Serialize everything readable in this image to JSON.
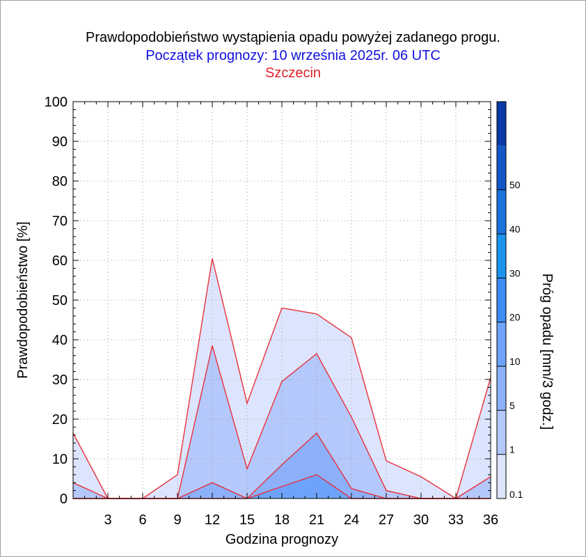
{
  "titles": {
    "main": "Prawdopodobieństwo wystąpienia opadu powyżej zadanego progu.",
    "start": "Początek prognozy: 10 września 2025r. 06 UTC",
    "location": "Szczecin"
  },
  "colors": {
    "start_text": "#1010e0",
    "location_text": "#e0202a",
    "series_line": "#e8303a"
  },
  "chart_data": {
    "type": "area",
    "xlabel": "Godzina prognozy",
    "ylabel": "Prawdopodobieństwo [%]",
    "xlim": [
      0,
      36
    ],
    "ylim": [
      0,
      100
    ],
    "x": [
      0,
      3,
      6,
      9,
      12,
      15,
      18,
      21,
      24,
      27,
      30,
      33,
      36
    ],
    "x_tick_labels": [
      "3",
      "6",
      "9",
      "12",
      "15",
      "18",
      "21",
      "24",
      "27",
      "30",
      "33",
      "36"
    ],
    "y_ticks": [
      0,
      10,
      20,
      30,
      40,
      50,
      60,
      70,
      80,
      90,
      100
    ],
    "grid": true,
    "series": [
      {
        "threshold": 0.1,
        "color": "#dde4fd",
        "values": [
          16.5,
          0,
          0,
          6,
          60.5,
          24,
          48,
          46.5,
          40.5,
          9.5,
          5.5,
          0,
          30.5
        ]
      },
      {
        "threshold": 1,
        "color": "#b4c8fb",
        "values": [
          4,
          0,
          0,
          0,
          38.5,
          7.5,
          29.5,
          36.5,
          20.5,
          2,
          0,
          0,
          5.5
        ]
      },
      {
        "threshold": 5,
        "color": "#8cb0fa",
        "values": [
          0,
          0,
          0,
          0,
          4,
          0,
          8.5,
          16.5,
          2.5,
          0,
          0,
          0,
          0
        ]
      },
      {
        "threshold": 10,
        "color": "#6ea3fb",
        "values": [
          0,
          0,
          0,
          0,
          0,
          0,
          3,
          6,
          0,
          0,
          0,
          0,
          0
        ]
      }
    ],
    "colorbar": {
      "label": "Próg opadu [mm/3 godz.]",
      "tick_labels": [
        "0.1",
        "1",
        "5",
        "10",
        "20",
        "30",
        "40",
        "50"
      ],
      "bands": [
        {
          "from": "0.1",
          "color": "#dde4fd"
        },
        {
          "from": "1",
          "color": "#b4c8fb"
        },
        {
          "from": "5",
          "color": "#8cb0fa"
        },
        {
          "from": "10",
          "color": "#6ea3fb"
        },
        {
          "from": "20",
          "color": "#3d8ef5"
        },
        {
          "from": "30",
          "color": "#1c94ef"
        },
        {
          "from": "40",
          "color": "#1a74e0"
        },
        {
          "from": "50",
          "color": "#1257c8"
        },
        {
          "from": "60",
          "color": "#0a3aa8"
        }
      ]
    }
  }
}
